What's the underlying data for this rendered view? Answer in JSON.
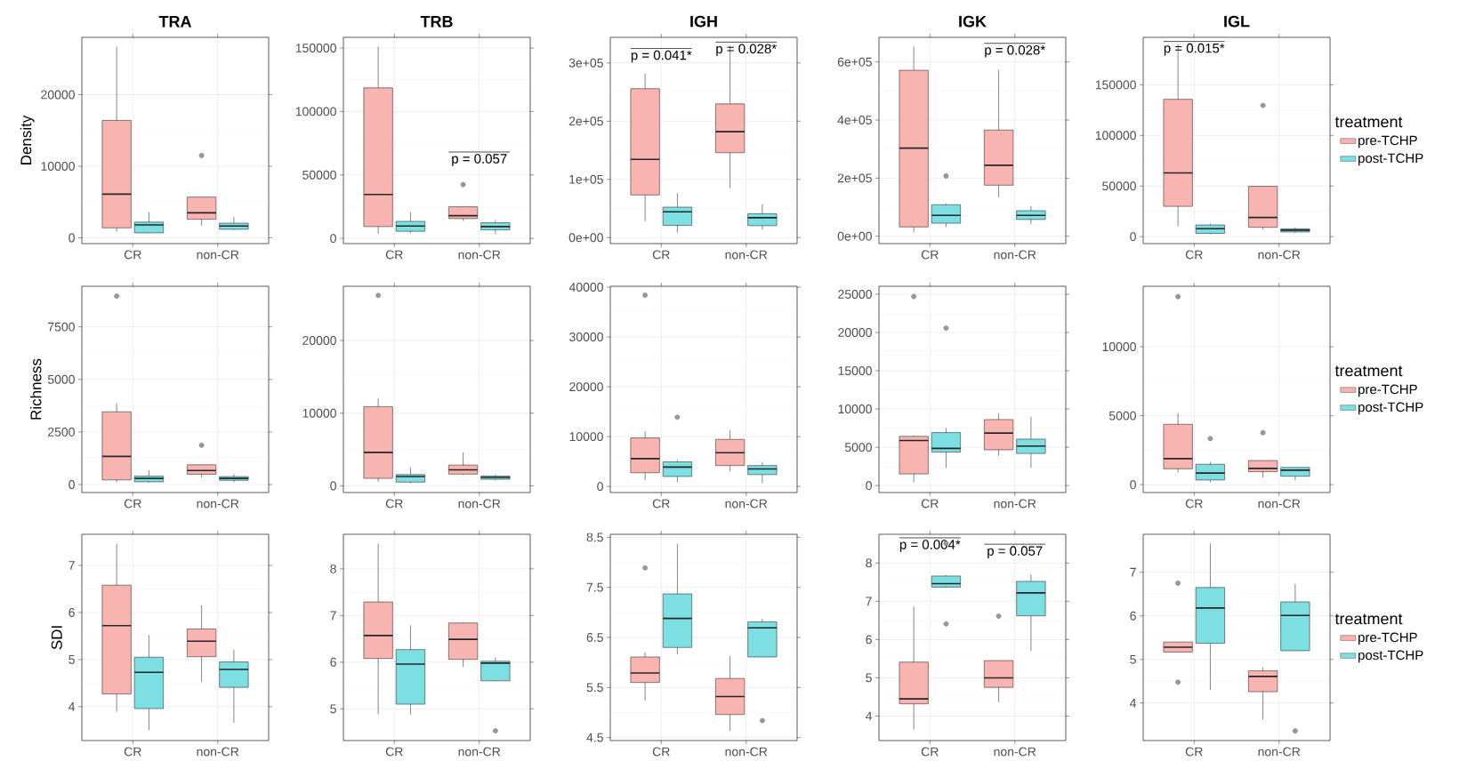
{
  "chart_data": [
    {
      "type": "box",
      "title": "TRA",
      "ylabel": "Density",
      "categories": [
        "CR",
        "non-CR"
      ],
      "grid": true,
      "ylim": [
        -800,
        28000
      ],
      "yticks": [
        0,
        10000,
        20000
      ],
      "series": [
        {
          "color": "#f8b4b0",
          "boxes": [
            {
              "low": 860,
              "q1": 1400,
              "median": 6100,
              "q3": 16400,
              "high": 26700
            },
            {
              "low": 1700,
              "q1": 2600,
              "median": 3500,
              "q3": 5700,
              "high": 5700,
              "outliers": [
                11500
              ]
            }
          ]
        },
        {
          "color": "#7ddfe1",
          "boxes": [
            {
              "low": 660,
              "q1": 700,
              "median": 1800,
              "q3": 2200,
              "high": 3600
            },
            {
              "low": 1050,
              "q1": 1200,
              "median": 1650,
              "q3": 2050,
              "high": 2900
            }
          ]
        }
      ]
    },
    {
      "type": "box",
      "title": "TRB",
      "categories": [
        "CR",
        "non-CR"
      ],
      "grid": true,
      "ylim": [
        -4100,
        158400
      ],
      "yticks": [
        0,
        50000,
        100000,
        150000
      ],
      "series": [
        {
          "color": "#f8b4b0",
          "boxes": [
            {
              "low": 3700,
              "q1": 9300,
              "median": 34600,
              "q3": 118600,
              "high": 151000
            },
            {
              "low": 13800,
              "q1": 15600,
              "median": 17900,
              "q3": 24900,
              "high": 24900,
              "outliers": [
                42400
              ]
            }
          ]
        },
        {
          "color": "#7ddfe1",
          "boxes": [
            {
              "low": 4100,
              "q1": 5600,
              "median": 9700,
              "q3": 13400,
              "high": 20500
            },
            {
              "low": 3300,
              "q1": 6700,
              "median": 9300,
              "q3": 12300,
              "high": 14500
            }
          ]
        }
      ],
      "annotations": [
        "p = 0.057"
      ]
    },
    {
      "type": "box",
      "title": "IGH",
      "categories": [
        "CR",
        "non-CR"
      ],
      "grid": true,
      "ylim": [
        -10300,
        344000
      ],
      "yticks": [
        {
          "value": 0,
          "label": "0e+00"
        },
        {
          "value": 100000,
          "label": "1e+05"
        },
        {
          "value": 200000,
          "label": "2e+05"
        },
        {
          "value": 300000,
          "label": "3e+05"
        }
      ],
      "series": [
        {
          "color": "#f8b4b0",
          "boxes": [
            {
              "low": 28200,
              "q1": 73200,
              "median": 134300,
              "q3": 255800,
              "high": 281600
            },
            {
              "low": 85000,
              "q1": 145800,
              "median": 182000,
              "q3": 229700,
              "high": 330000
            }
          ]
        },
        {
          "color": "#7ddfe1",
          "boxes": [
            {
              "low": 8800,
              "q1": 20900,
              "median": 44200,
              "q3": 52300,
              "high": 76400
            },
            {
              "low": 14000,
              "q1": 20500,
              "median": 34200,
              "q3": 41100,
              "high": 57200
            }
          ]
        }
      ],
      "annotations": [
        "p = 0.041*",
        "p = 0.028*"
      ]
    },
    {
      "type": "box",
      "title": "IGK",
      "categories": [
        "CR",
        "non-CR"
      ],
      "grid": true,
      "ylim": [
        -25500,
        684700
      ],
      "yticks": [
        {
          "value": 0,
          "label": "0e+00"
        },
        {
          "value": 200000,
          "label": "2e+05"
        },
        {
          "value": 400000,
          "label": "4e+05"
        },
        {
          "value": 600000,
          "label": "6e+05"
        }
      ],
      "series": [
        {
          "color": "#f8b4b0",
          "boxes": [
            {
              "low": 12800,
              "q1": 31900,
              "median": 303200,
              "q3": 571300,
              "high": 652700
            },
            {
              "low": 134100,
              "q1": 175600,
              "median": 244200,
              "q3": 365500,
              "high": 573000
            }
          ]
        },
        {
          "color": "#7ddfe1",
          "boxes": [
            {
              "low": 31900,
              "q1": 44700,
              "median": 71800,
              "q3": 108500,
              "high": 112000,
              "outliers": [
                207500
              ]
            },
            {
              "low": 41500,
              "q1": 57500,
              "median": 71800,
              "q3": 87800,
              "high": 103700
            }
          ]
        }
      ],
      "annotations": [
        "p = 0.028*"
      ]
    },
    {
      "type": "box",
      "title": "IGL",
      "categories": [
        "CR",
        "non-CR"
      ],
      "grid": true,
      "ylim": [
        -6900,
        196900
      ],
      "yticks": [
        0,
        50000,
        100000,
        150000
      ],
      "legend": "right",
      "legend_title": "treatment",
      "series": [
        {
          "name": "pre-TCHP",
          "color": "#f8b4b0",
          "boxes": [
            {
              "low": 10100,
              "q1": 29900,
              "median": 63000,
              "q3": 135700,
              "high": 190000
            },
            {
              "low": 6900,
              "q1": 9200,
              "median": 18900,
              "q3": 49700,
              "high": 49700,
              "outliers": [
                129700
              ]
            }
          ]
        },
        {
          "name": "post-TCHP",
          "color": "#7ddfe1",
          "boxes": [
            {
              "low": 2300,
              "q1": 3200,
              "median": 7800,
              "q3": 11500,
              "high": 12900
            },
            {
              "low": 3700,
              "q1": 4600,
              "median": 6400,
              "q3": 7800,
              "high": 9200
            }
          ]
        }
      ],
      "annotations": [
        "p = 0.015*"
      ]
    },
    {
      "type": "box",
      "ylabel": "Richness",
      "categories": [
        "CR",
        "non-CR"
      ],
      "grid": true,
      "ylim": [
        -380,
        9430
      ],
      "yticks": [
        0,
        2500,
        5000,
        7500
      ],
      "series": [
        {
          "color": "#f8b4b0",
          "boxes": [
            {
              "low": 110,
              "q1": 220,
              "median": 1340,
              "q3": 3460,
              "high": 3860,
              "outliers": [
                8960
              ]
            },
            {
              "low": 330,
              "q1": 490,
              "median": 670,
              "q3": 940,
              "high": 940,
              "outliers": [
                1870
              ]
            }
          ]
        },
        {
          "color": "#7ddfe1",
          "boxes": [
            {
              "low": 90,
              "q1": 130,
              "median": 290,
              "q3": 400,
              "high": 670
            },
            {
              "low": 110,
              "q1": 200,
              "median": 290,
              "q3": 380,
              "high": 490
            }
          ]
        }
      ]
    },
    {
      "type": "box",
      "categories": [
        "CR",
        "non-CR"
      ],
      "grid": true,
      "ylim": [
        -910,
        27450
      ],
      "yticks": [
        0,
        10000,
        20000
      ],
      "series": [
        {
          "color": "#f8b4b0",
          "boxes": [
            {
              "low": 580,
              "q1": 1040,
              "median": 4610,
              "q3": 10900,
              "high": 12070,
              "outliers": [
                26200
              ]
            },
            {
              "low": 1490,
              "q1": 1620,
              "median": 2210,
              "q3": 2860,
              "high": 4610
            }
          ]
        },
        {
          "color": "#7ddfe1",
          "boxes": [
            {
              "low": 320,
              "q1": 520,
              "median": 1300,
              "q3": 1560,
              "high": 2530
            },
            {
              "low": 780,
              "q1": 910,
              "median": 1170,
              "q3": 1360,
              "high": 1560
            }
          ]
        }
      ]
    },
    {
      "type": "box",
      "categories": [
        "CR",
        "non-CR"
      ],
      "grid": true,
      "ylim": [
        -1230,
        40190
      ],
      "yticks": [
        0,
        10000,
        20000,
        30000,
        40000
      ],
      "series": [
        {
          "color": "#f8b4b0",
          "boxes": [
            {
              "low": 1230,
              "q1": 2740,
              "median": 5580,
              "q3": 9740,
              "high": 11060,
              "outliers": [
                38390
              ]
            },
            {
              "low": 3000,
              "q1": 4190,
              "median": 6760,
              "q3": 9440,
              "high": 11340
            }
          ]
        },
        {
          "color": "#7ddfe1",
          "boxes": [
            {
              "low": 850,
              "q1": 1990,
              "median": 3880,
              "q3": 4920,
              "high": 5300,
              "outliers": [
                13900
              ]
            },
            {
              "low": 650,
              "q1": 2370,
              "median": 3510,
              "q3": 4190,
              "high": 4860
            }
          ]
        }
      ]
    },
    {
      "type": "box",
      "categories": [
        "CR",
        "non-CR"
      ],
      "grid": true,
      "ylim": [
        -910,
        26040
      ],
      "yticks": [
        0,
        5000,
        10000,
        15000,
        20000,
        25000
      ],
      "series": [
        {
          "color": "#f8b4b0",
          "boxes": [
            {
              "low": 420,
              "q1": 1520,
              "median": 5890,
              "q3": 6430,
              "high": 6560,
              "outliers": [
                24700
              ]
            },
            {
              "low": 3880,
              "q1": 4670,
              "median": 6860,
              "q3": 8620,
              "high": 9410
            }
          ]
        },
        {
          "color": "#7ddfe1",
          "boxes": [
            {
              "low": 2310,
              "q1": 4370,
              "median": 4860,
              "q3": 6920,
              "high": 7530,
              "outliers": [
                20580
              ]
            },
            {
              "low": 2310,
              "q1": 4190,
              "median": 5160,
              "q3": 6070,
              "high": 8980
            }
          ]
        }
      ]
    },
    {
      "type": "box",
      "categories": [
        "CR",
        "non-CR"
      ],
      "grid": true,
      "ylim": [
        -570,
        14390
      ],
      "yticks": [
        0,
        5000,
        10000
      ],
      "legend": "right",
      "legend_title": "treatment",
      "series": [
        {
          "name": "pre-TCHP",
          "color": "#f8b4b0",
          "boxes": [
            {
              "low": 880,
              "q1": 1150,
              "median": 1890,
              "q3": 4380,
              "high": 5190,
              "outliers": [
                13640
              ]
            },
            {
              "low": 510,
              "q1": 940,
              "median": 1180,
              "q3": 1750,
              "high": 1750,
              "outliers": [
                3770
              ]
            }
          ]
        },
        {
          "name": "post-TCHP",
          "color": "#7ddfe1",
          "boxes": [
            {
              "low": 170,
              "q1": 340,
              "median": 840,
              "q3": 1480,
              "high": 1650,
              "outliers": [
                3340
              ]
            },
            {
              "low": 300,
              "q1": 610,
              "median": 1050,
              "q3": 1250,
              "high": 1250
            }
          ]
        }
      ]
    },
    {
      "type": "box",
      "ylabel": "SDI",
      "categories": [
        "CR",
        "non-CR"
      ],
      "grid": true,
      "ylim": [
        3.28,
        7.66
      ],
      "yticks": [
        4,
        5,
        6,
        7
      ],
      "series": [
        {
          "color": "#f8b4b0",
          "boxes": [
            {
              "low": 3.89,
              "q1": 4.27,
              "median": 5.72,
              "q3": 6.58,
              "high": 7.46
            },
            {
              "low": 4.52,
              "q1": 5.06,
              "median": 5.39,
              "q3": 5.65,
              "high": 6.15
            }
          ]
        },
        {
          "color": "#7ddfe1",
          "boxes": [
            {
              "low": 3.5,
              "q1": 3.96,
              "median": 4.73,
              "q3": 5.05,
              "high": 5.52
            },
            {
              "low": 3.66,
              "q1": 4.41,
              "median": 4.79,
              "q3": 4.95,
              "high": 5.21
            }
          ]
        }
      ]
    },
    {
      "type": "box",
      "categories": [
        "CR",
        "non-CR"
      ],
      "grid": true,
      "ylim": [
        4.32,
        8.74
      ],
      "yticks": [
        5,
        6,
        7,
        8
      ],
      "series": [
        {
          "color": "#f8b4b0",
          "boxes": [
            {
              "low": 4.88,
              "q1": 6.08,
              "median": 6.57,
              "q3": 7.29,
              "high": 8.54
            },
            {
              "low": 5.9,
              "q1": 6.06,
              "median": 6.49,
              "q3": 6.84,
              "high": 6.86
            }
          ]
        },
        {
          "color": "#7ddfe1",
          "boxes": [
            {
              "low": 4.88,
              "q1": 5.1,
              "median": 5.96,
              "q3": 6.27,
              "high": 6.79
            },
            {
              "low": 5.6,
              "q1": 5.6,
              "median": 5.98,
              "q3": 6.02,
              "high": 6.1,
              "outliers": [
                4.53
              ]
            }
          ]
        }
      ]
    },
    {
      "type": "box",
      "categories": [
        "CR",
        "non-CR"
      ],
      "grid": true,
      "ylim": [
        4.44,
        8.56
      ],
      "yticks": [
        4.5,
        5.5,
        6.5,
        7.5,
        8.5
      ],
      "series": [
        {
          "color": "#f8b4b0",
          "boxes": [
            {
              "low": 5.23,
              "q1": 5.6,
              "median": 5.79,
              "q3": 6.11,
              "high": 6.2,
              "outliers": [
                7.89
              ]
            },
            {
              "low": 4.63,
              "q1": 4.96,
              "median": 5.32,
              "q3": 5.68,
              "high": 6.13
            }
          ]
        },
        {
          "color": "#7ddfe1",
          "boxes": [
            {
              "low": 6.16,
              "q1": 6.3,
              "median": 6.88,
              "q3": 7.37,
              "high": 8.37
            },
            {
              "low": 6.11,
              "q1": 6.11,
              "median": 6.69,
              "q3": 6.81,
              "high": 6.87,
              "outliers": [
                4.84
              ]
            }
          ]
        }
      ]
    },
    {
      "type": "box",
      "categories": [
        "CR",
        "non-CR"
      ],
      "grid": true,
      "ylim": [
        3.36,
        8.75
      ],
      "yticks": [
        4,
        5,
        6,
        7,
        8
      ],
      "series": [
        {
          "color": "#f8b4b0",
          "boxes": [
            {
              "low": 3.65,
              "q1": 4.32,
              "median": 4.45,
              "q3": 5.41,
              "high": 6.86
            },
            {
              "low": 4.36,
              "q1": 4.75,
              "median": 5.0,
              "q3": 5.45,
              "high": 5.45,
              "outliers": [
                6.61
              ]
            }
          ]
        },
        {
          "color": "#7ddfe1",
          "boxes": [
            {
              "low": 7.35,
              "q1": 7.37,
              "median": 7.46,
              "q3": 7.66,
              "high": 7.68,
              "outliers": [
                8.51,
                6.41
              ]
            },
            {
              "low": 5.7,
              "q1": 6.62,
              "median": 7.22,
              "q3": 7.52,
              "high": 7.7
            }
          ]
        }
      ],
      "annotations": [
        "p = 0.004*",
        "p = 0.057"
      ]
    },
    {
      "type": "box",
      "categories": [
        "CR",
        "non-CR"
      ],
      "grid": true,
      "ylim": [
        3.14,
        7.87
      ],
      "yticks": [
        4,
        5,
        6,
        7
      ],
      "legend": "right",
      "legend_title": "treatment",
      "series": [
        {
          "name": "pre-TCHP",
          "color": "#f8b4b0",
          "boxes": [
            {
              "low": 5.17,
              "q1": 5.17,
              "median": 5.28,
              "q3": 5.4,
              "high": 5.4,
              "outliers": [
                6.75,
                4.48
              ]
            },
            {
              "low": 3.62,
              "q1": 4.26,
              "median": 4.61,
              "q3": 4.74,
              "high": 4.82
            }
          ]
        },
        {
          "name": "post-TCHP",
          "color": "#7ddfe1",
          "boxes": [
            {
              "low": 4.3,
              "q1": 5.37,
              "median": 6.18,
              "q3": 6.65,
              "high": 7.66
            },
            {
              "low": 5.2,
              "q1": 5.2,
              "median": 6.01,
              "q3": 6.32,
              "high": 6.73,
              "outliers": [
                3.36
              ]
            }
          ]
        }
      ]
    }
  ]
}
